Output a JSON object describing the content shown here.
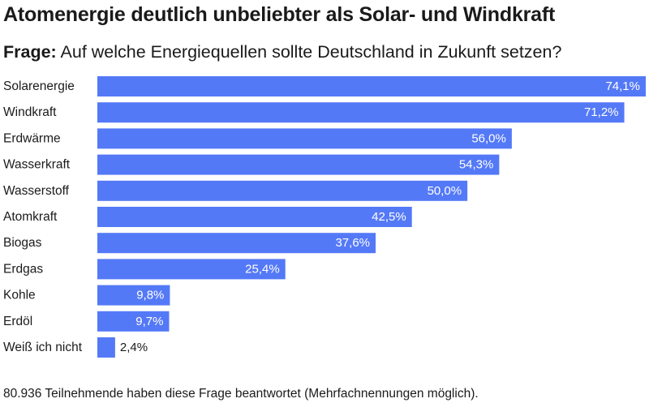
{
  "title": "Atomenergie deutlich unbeliebter als Solar- und Windkraft",
  "question": {
    "label": "Frage:",
    "text": "Auf welche Energiequellen sollte Deutschland in Zukunft setzen?"
  },
  "footnote": "80.936 Teilnehmende haben diese Frage beantwortet (Mehrfachnennungen möglich).",
  "colors": {
    "bar": "#5479f7",
    "label_inside": "#ffffff",
    "label_outside": "#1a1a1a"
  },
  "chart_data": {
    "type": "bar",
    "orientation": "horizontal",
    "title": "Atomenergie deutlich unbeliebter als Solar- und Windkraft",
    "subtitle": "Frage: Auf welche Energiequellen sollte Deutschland in Zukunft setzen?",
    "xlabel": "",
    "ylabel": "",
    "unit": "%",
    "xlim": [
      0,
      74.1
    ],
    "grid": false,
    "legend": "none",
    "categories": [
      "Solarenergie",
      "Windkraft",
      "Erdwärme",
      "Wasserkraft",
      "Wasserstoff",
      "Atomkraft",
      "Biogas",
      "Erdgas",
      "Kohle",
      "Erdöl",
      "Weiß ich nicht"
    ],
    "values": [
      74.1,
      71.2,
      56.0,
      54.3,
      50.0,
      42.5,
      37.6,
      25.4,
      9.8,
      9.7,
      2.4
    ],
    "value_labels": [
      "74,1%",
      "71,2%",
      "56,0%",
      "54,3%",
      "50,0%",
      "42,5%",
      "37,6%",
      "25,4%",
      "9,8%",
      "9,7%",
      "2,4%"
    ]
  }
}
